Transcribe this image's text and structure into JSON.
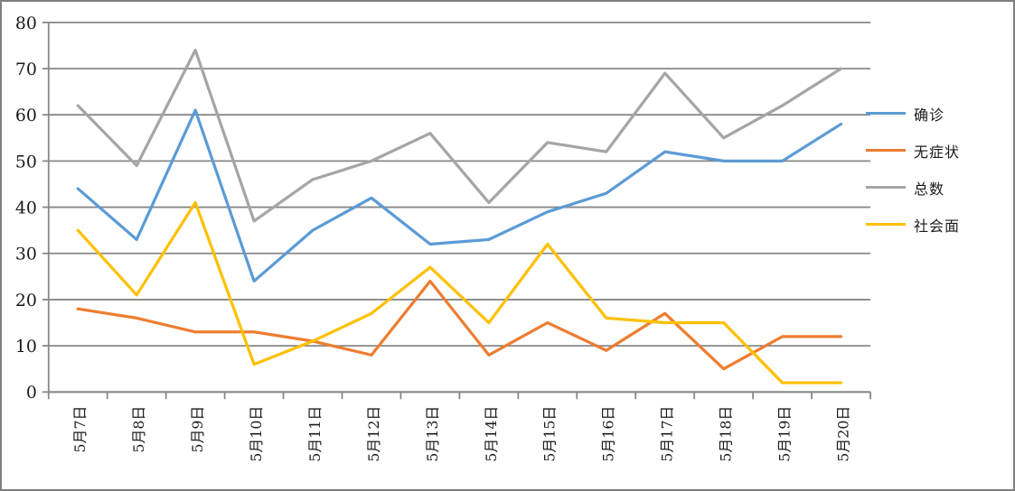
{
  "chart_data": {
    "type": "line",
    "title": "",
    "xlabel": "",
    "ylabel": "",
    "categories": [
      "5月7日",
      "5月8日",
      "5月9日",
      "5月10日",
      "5月11日",
      "5月12日",
      "5月13日",
      "5月14日",
      "5月15日",
      "5月16日",
      "5月17日",
      "5月18日",
      "5月19日",
      "5月20日"
    ],
    "series": [
      {
        "name": "确诊",
        "color": "#5B9BD5",
        "values": [
          44,
          33,
          61,
          24,
          35,
          42,
          32,
          33,
          39,
          43,
          52,
          50,
          50,
          58
        ]
      },
      {
        "name": "无症状",
        "color": "#ED7D31",
        "values": [
          18,
          16,
          13,
          13,
          11,
          8,
          24,
          8,
          15,
          9,
          17,
          5,
          12,
          12
        ]
      },
      {
        "name": "总数",
        "color": "#A5A5A5",
        "values": [
          62,
          49,
          74,
          37,
          46,
          50,
          56,
          41,
          54,
          52,
          69,
          55,
          62,
          70
        ]
      },
      {
        "name": "社会面",
        "color": "#FFC000",
        "values": [
          35,
          21,
          41,
          6,
          11,
          17,
          27,
          15,
          32,
          16,
          15,
          15,
          2,
          2
        ]
      }
    ],
    "ylim": [
      0,
      80
    ],
    "yticks": [
      0,
      10,
      20,
      30,
      40,
      50,
      60,
      70,
      80
    ],
    "grid": true,
    "legend_position": "right",
    "colors": {
      "gridline": "#878787",
      "axis": "#878787",
      "tick_label": "#1a1a1a",
      "background": "#ffffff",
      "border": "#7f7f7f"
    }
  }
}
